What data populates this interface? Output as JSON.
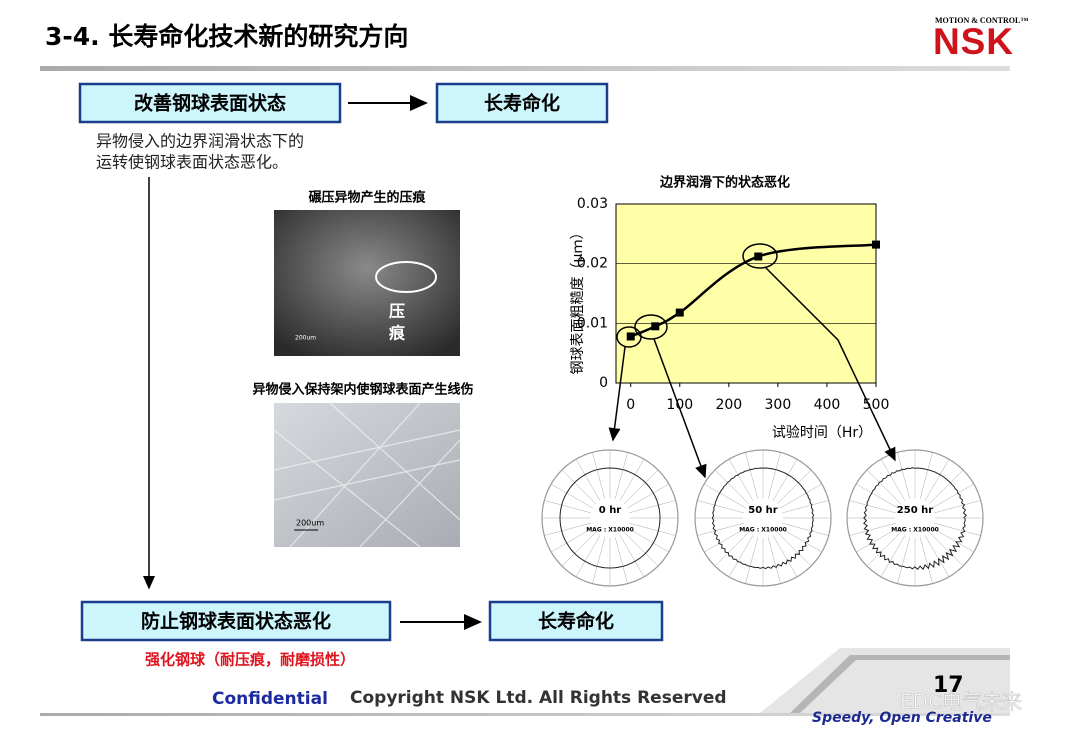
{
  "header": {
    "title": "3-4. 长寿命化技术新的研究方向",
    "logo_tagline": "MOTION & CONTROL™",
    "logo": "NSK"
  },
  "flow": {
    "top_box": "改善钢球表面状态",
    "top_result": "长寿命化",
    "description": [
      "异物侵入的边界润滑状态下的",
      "运转使钢球表面状态恶化。"
    ],
    "bottom_box": "防止钢球表面状态恶化",
    "bottom_result": "长寿命化",
    "bottom_note": "强化钢球（耐压痕，耐磨损性）"
  },
  "photos": [
    {
      "caption": "碾压异物产生的压痕",
      "mark_label": [
        "压",
        "痕"
      ],
      "scale": "200um"
    },
    {
      "caption": "异物侵入保持架内使钢球表面产生线伤",
      "scale": "200um"
    }
  ],
  "chart_data": {
    "type": "line",
    "title": "边界润滑下的状态恶化",
    "x_label": "试验时间（Hr）",
    "y_label": "钢球表面粗糙度（μｍ）",
    "x": [
      0,
      50,
      100,
      260,
      500
    ],
    "values": [
      0.0078,
      0.0095,
      0.0118,
      0.0212,
      0.0232
    ],
    "color": "#000000",
    "xlim": [
      -30,
      500
    ],
    "ylim": [
      0,
      0.03
    ],
    "xticks": [
      0,
      100,
      200,
      300,
      400,
      500
    ],
    "yticks": [
      0,
      0.01,
      0.02,
      0.03
    ],
    "grid": true,
    "background": "#ffffa8"
  },
  "polar_charts": [
    {
      "label": "0 hr",
      "mag": "MAG : X10000"
    },
    {
      "label": "50 hr",
      "mag": "MAG : X10000"
    },
    {
      "label": "250 hr",
      "mag": "MAG : X10000"
    }
  ],
  "footer": {
    "confidential": "Confidential",
    "copyright": "Copyright NSK Ltd. All Rights Reserved",
    "page": "17",
    "slogan": "Speedy, Open Creative",
    "watermark": "EDC电气未来"
  }
}
